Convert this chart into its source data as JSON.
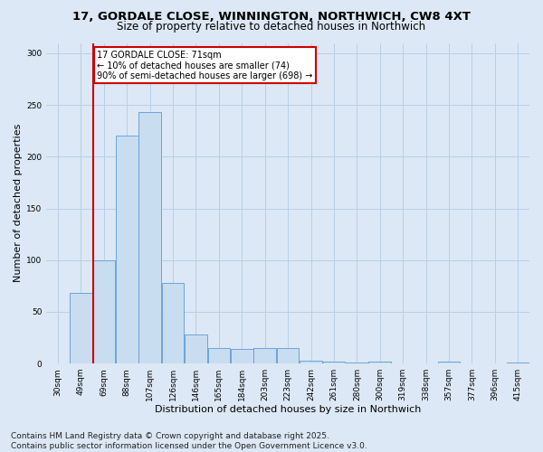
{
  "title_line1": "17, GORDALE CLOSE, WINNINGTON, NORTHWICH, CW8 4XT",
  "title_line2": "Size of property relative to detached houses in Northwich",
  "xlabel": "Distribution of detached houses by size in Northwich",
  "ylabel": "Number of detached properties",
  "categories": [
    "30sqm",
    "49sqm",
    "69sqm",
    "88sqm",
    "107sqm",
    "126sqm",
    "146sqm",
    "165sqm",
    "184sqm",
    "203sqm",
    "223sqm",
    "242sqm",
    "261sqm",
    "280sqm",
    "300sqm",
    "319sqm",
    "338sqm",
    "357sqm",
    "377sqm",
    "396sqm",
    "415sqm"
  ],
  "values": [
    0,
    68,
    100,
    220,
    243,
    78,
    28,
    15,
    14,
    15,
    15,
    3,
    2,
    1,
    2,
    0,
    0,
    2,
    0,
    0,
    1
  ],
  "bar_color": "#c9ddf0",
  "bar_edge_color": "#5b9bd5",
  "grid_color": "#b8cfe8",
  "background_color": "#dce8f5",
  "vline_color": "#cc0000",
  "vline_xindex": 1.54,
  "annotation_text": "17 GORDALE CLOSE: 71sqm\n← 10% of detached houses are smaller (74)\n90% of semi-detached houses are larger (698) →",
  "annotation_box_facecolor": "#ffffff",
  "annotation_box_edgecolor": "#cc0000",
  "ylim": [
    0,
    310
  ],
  "yticks": [
    0,
    50,
    100,
    150,
    200,
    250,
    300
  ],
  "title_fontsize": 9.5,
  "subtitle_fontsize": 8.5,
  "axis_label_fontsize": 8,
  "tick_fontsize": 6.5,
  "footer_fontsize": 6.5,
  "annotation_fontsize": 7,
  "footer_line1": "Contains HM Land Registry data © Crown copyright and database right 2025.",
  "footer_line2": "Contains public sector information licensed under the Open Government Licence v3.0."
}
